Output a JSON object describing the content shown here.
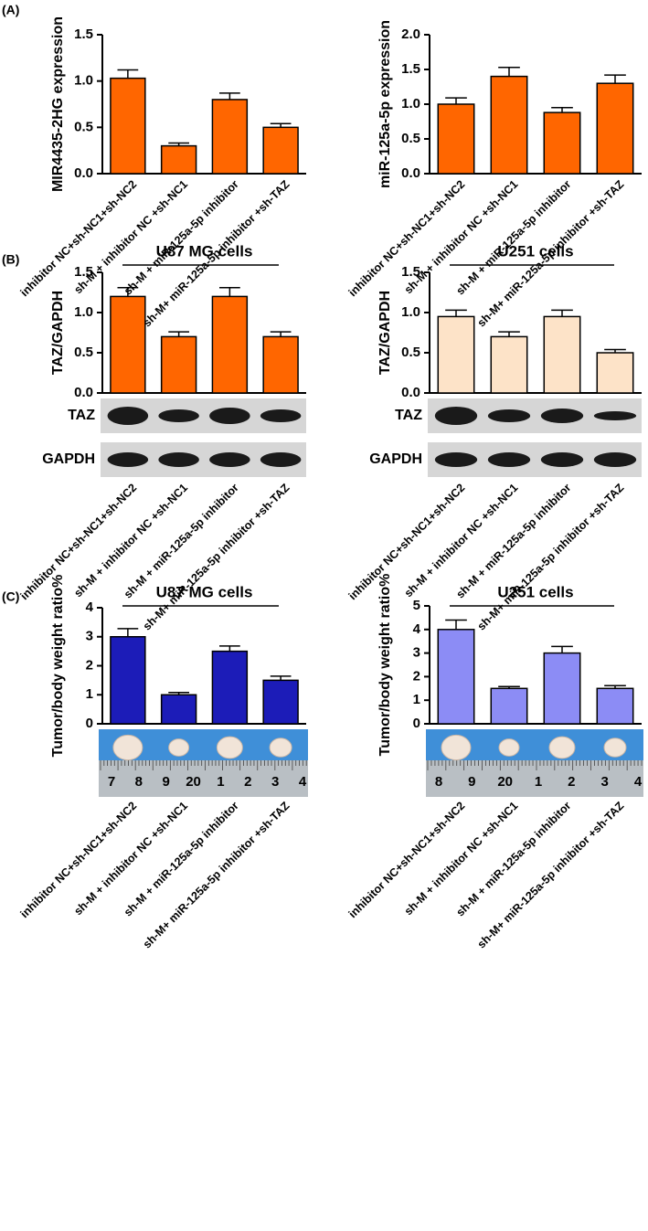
{
  "panels": [
    "(A)",
    "(B)",
    "(C)"
  ],
  "chart_data": [
    {
      "type": "bar",
      "y_label": "MIR4435-2HG expression",
      "categories": [
        "inhibitor NC+sh-NC1+sh-NC2",
        "sh-M + inhibitor NC +sh-NC1",
        "sh-M + miR-125a-5p inhibitor",
        "sh-M+ miR-125a-5p inhibitor +sh-TAZ"
      ],
      "values": [
        1.03,
        0.3,
        0.8,
        0.5
      ],
      "errors": [
        0.09,
        0.03,
        0.07,
        0.04
      ],
      "color": "#ff6600",
      "ylim": [
        0,
        1.5
      ],
      "yticks": [
        {
          "value": 0,
          "label": "0.0"
        },
        {
          "value": 0.5,
          "label": "0.5"
        },
        {
          "value": 1,
          "label": "1.0"
        },
        {
          "value": 1.5,
          "label": "1.5"
        }
      ]
    },
    {
      "type": "bar",
      "y_label": "miR-125a-5p expression",
      "categories": [
        "inhibitor NC+sh-NC1+sh-NC2",
        "sh-M + inhibitor NC +sh-NC1",
        "sh-M + miR-125a-5p inhibitor",
        "sh-M+ miR-125a-5p inhibitor +sh-TAZ"
      ],
      "values": [
        1.0,
        1.4,
        0.88,
        1.3
      ],
      "errors": [
        0.09,
        0.13,
        0.07,
        0.12
      ],
      "color": "#ff6600",
      "ylim": [
        0,
        2
      ],
      "yticks": [
        {
          "value": 0,
          "label": "0.0"
        },
        {
          "value": 0.5,
          "label": "0.5"
        },
        {
          "value": 1,
          "label": "1.0"
        },
        {
          "value": 1.5,
          "label": "1.5"
        },
        {
          "value": 2,
          "label": "2.0"
        }
      ]
    },
    {
      "type": "bar",
      "header": "U87 MG cells",
      "y_label": "TAZ/GAPDH",
      "blot_labels": [
        "TAZ",
        "GAPDH"
      ],
      "categories": [
        "inhibitor NC+sh-NC1+sh-NC2",
        "sh-M + inhibitor NC +sh-NC1",
        "sh-M + miR-125a-5p inhibitor",
        "sh-M+ miR-125a-5p inhibitor +sh-TAZ"
      ],
      "values": [
        1.2,
        0.7,
        1.2,
        0.7
      ],
      "errors": [
        0.11,
        0.06,
        0.11,
        0.06
      ],
      "color": "#ff6600",
      "ylim": [
        0,
        1.5
      ],
      "yticks": [
        {
          "value": 0,
          "label": "0.0"
        },
        {
          "value": 0.5,
          "label": "0.5"
        },
        {
          "value": 1,
          "label": "1.0"
        },
        {
          "value": 1.5,
          "label": "1.5"
        }
      ]
    },
    {
      "type": "bar",
      "header": "U251 cells",
      "y_label": "TAZ/GAPDH",
      "blot_labels": [
        "TAZ",
        "GAPDH"
      ],
      "categories": [
        "inhibitor NC+sh-NC1+sh-NC2",
        "sh-M + inhibitor NC +sh-NC1",
        "sh-M + miR-125a-5p inhibitor",
        "sh-M+ miR-125a-5p inhibitor +sh-TAZ"
      ],
      "values": [
        0.95,
        0.7,
        0.95,
        0.5
      ],
      "errors": [
        0.08,
        0.06,
        0.08,
        0.04
      ],
      "color": "#fde3c8",
      "ylim": [
        0,
        1.5
      ],
      "yticks": [
        {
          "value": 0,
          "label": "0.0"
        },
        {
          "value": 0.5,
          "label": "0.5"
        },
        {
          "value": 1,
          "label": "1.0"
        },
        {
          "value": 1.5,
          "label": "1.5"
        }
      ]
    },
    {
      "type": "bar",
      "header": "U87 MG cells",
      "y_label": "Tumor/body weight ratio%",
      "ruler_labels": [
        "7",
        "8",
        "9",
        "20",
        "1",
        "2",
        "3",
        "4"
      ],
      "categories": [
        "inhibitor NC+sh-NC1+sh-NC2",
        "sh-M + inhibitor NC +sh-NC1",
        "sh-M + miR-125a-5p inhibitor",
        "sh-M+ miR-125a-5p inhibitor +sh-TAZ"
      ],
      "values": [
        3.0,
        1.0,
        2.5,
        1.5
      ],
      "errors": [
        0.28,
        0.08,
        0.18,
        0.14
      ],
      "color": "#1c1cb8",
      "ylim": [
        0,
        4
      ],
      "yticks": [
        0,
        1,
        2,
        3,
        4
      ]
    },
    {
      "type": "bar",
      "header": "U251 cells",
      "y_label": "Tumor/body weight ratio%",
      "ruler_labels": [
        "8",
        "9",
        "20",
        "1",
        "2",
        "3",
        "4"
      ],
      "categories": [
        "inhibitor NC+sh-NC1+sh-NC2",
        "sh-M + inhibitor NC +sh-NC1",
        "sh-M + miR-125a-5p inhibitor",
        "sh-M+ miR-125a-5p inhibitor +sh-TAZ"
      ],
      "values": [
        4.0,
        1.5,
        3.0,
        1.5
      ],
      "errors": [
        0.4,
        0.08,
        0.28,
        0.12
      ],
      "color": "#8c8cf5",
      "ylim": [
        0,
        5
      ],
      "yticks": [
        0,
        1,
        2,
        3,
        4,
        5
      ]
    }
  ]
}
